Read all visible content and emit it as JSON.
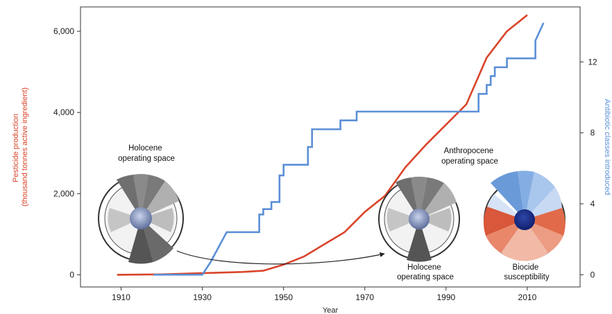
{
  "chart_data": {
    "type": "line",
    "xlabel": "Year",
    "ylabel_left": [
      "Pesticide production",
      "(thousand tonnes active ingredient)"
    ],
    "ylabel_right": "Antibiotic classes introduced",
    "xlim": [
      1900,
      2023
    ],
    "ylim_left": [
      -300,
      6600
    ],
    "ylim_right": [
      -0.69,
      15.1
    ],
    "x_ticks": [
      1910,
      1930,
      1950,
      1970,
      1990,
      2010
    ],
    "y_ticks_left": [
      0,
      2000,
      4000,
      6000
    ],
    "y_tick_labels_left": [
      "0",
      "2,000",
      "4,000",
      "6,000"
    ],
    "y_ticks_right": [
      0,
      4,
      8,
      12
    ],
    "y_tick_labels_right": [
      "0",
      "4",
      "8",
      "12"
    ],
    "series": [
      {
        "axis": "left",
        "color": "#d9442a",
        "x": [
          1909,
          1920,
          1930,
          1940,
          1945,
          1950,
          1955,
          1960,
          1965,
          1970,
          1975,
          1980,
          1985,
          1990,
          1995,
          2000,
          2005,
          2010
        ],
        "y": [
          0,
          10,
          40,
          70,
          100,
          250,
          450,
          750,
          1050,
          1550,
          1950,
          2650,
          3200,
          3700,
          4200,
          5350,
          6000,
          6400
        ]
      },
      {
        "axis": "right",
        "color": "#5b8fd6",
        "x": [
          1918,
          1930,
          1932,
          1936,
          1944,
          1944,
          1945,
          1945,
          1947,
          1947,
          1949,
          1949,
          1950,
          1950,
          1956,
          1956,
          1957,
          1957,
          1964,
          1964,
          1968,
          1968,
          1998,
          1998,
          2000,
          2000,
          2001,
          2001,
          2002,
          2002,
          2003,
          2003,
          2005,
          2005,
          2007,
          2007,
          2012,
          2012,
          2014
        ],
        "y": [
          0,
          0,
          0.7,
          2.4,
          2.4,
          3.4,
          3.4,
          3.7,
          3.7,
          4.1,
          4.1,
          5.6,
          5.6,
          6.2,
          6.2,
          7.2,
          7.2,
          8.2,
          8.2,
          8.7,
          8.7,
          9.2,
          9.2,
          10.2,
          10.2,
          10.7,
          10.7,
          11.2,
          11.2,
          11.7,
          11.7,
          11.7,
          11.7,
          12.2,
          12.2,
          12.2,
          12.2,
          13.2,
          14.2
        ]
      }
    ],
    "annotations": [
      {
        "text": [
          "Holocene",
          "operating space"
        ]
      },
      {
        "text": [
          "Anthropocene",
          "operating space"
        ]
      },
      {
        "text": [
          "Holocene",
          "operating space"
        ]
      },
      {
        "text": [
          "Biocide",
          "susceptibility"
        ]
      }
    ]
  }
}
